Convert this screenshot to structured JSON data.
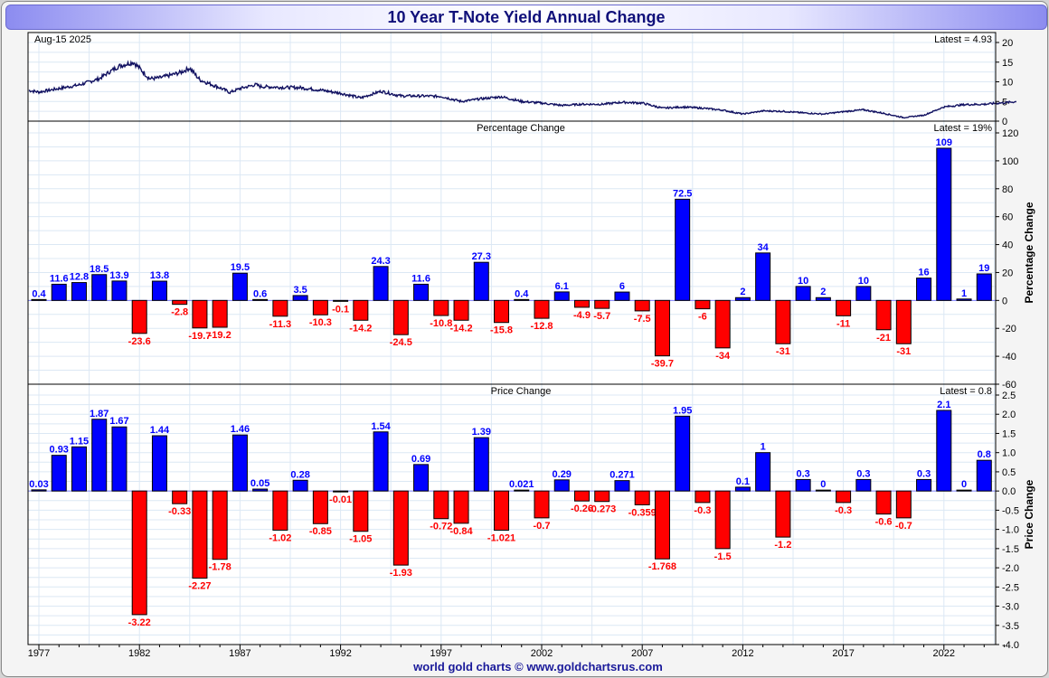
{
  "title": "10 Year T-Note Yield Annual Change",
  "footer": "world gold charts © www.goldchartsrus.com",
  "colors": {
    "up": "#0000ff",
    "down": "#ff0000",
    "line": "#101060",
    "grid": "#dce8f4",
    "title": "#10107a"
  },
  "chart_data": [
    {
      "type": "line",
      "title": "Aug-15  2025",
      "annotation": "Latest = 4.93",
      "ylabel": "",
      "ylim": [
        0,
        20
      ],
      "yticks": [
        0,
        5,
        10,
        15,
        20
      ],
      "x": [
        1976.5,
        1977,
        1978,
        1979,
        1980,
        1980.5,
        1981,
        1981.7,
        1982,
        1982.5,
        1983,
        1984,
        1984.5,
        1985,
        1986,
        1986.5,
        1987,
        1987.8,
        1988,
        1989,
        1990,
        1991,
        1992,
        1993,
        1994,
        1995,
        1996,
        1997,
        1998,
        1999,
        2000,
        2001,
        2002,
        2003,
        2004,
        2005,
        2006,
        2007,
        2008,
        2009,
        2010,
        2011,
        2012,
        2013,
        2014,
        2015,
        2016,
        2017,
        2018,
        2019,
        2020,
        2021,
        2022,
        2023,
        2024,
        2025.6
      ],
      "y": [
        7.8,
        7.4,
        8.3,
        9.2,
        10.8,
        12.5,
        14,
        15,
        13.5,
        10.8,
        11,
        12.3,
        13.5,
        10.5,
        8.5,
        7.3,
        8.3,
        9.3,
        8.8,
        8.6,
        8.5,
        7.9,
        7.1,
        5.9,
        7.6,
        6.4,
        6.4,
        6.3,
        5.0,
        5.7,
        6.2,
        5.0,
        4.6,
        4.0,
        4.3,
        4.3,
        4.8,
        4.6,
        3.3,
        3.6,
        3.3,
        2.8,
        1.8,
        2.6,
        2.5,
        2.1,
        1.8,
        2.4,
        2.9,
        2.0,
        0.9,
        1.5,
        3.6,
        4.2,
        4.3,
        4.93
      ]
    },
    {
      "type": "bar",
      "title": "Percentage Change",
      "annotation": "Latest = 19%",
      "ylabel": "Percentage Change",
      "ylim": [
        -60,
        120
      ],
      "yticks": [
        -60,
        -40,
        -20,
        0,
        20,
        40,
        60,
        80,
        100,
        120
      ],
      "categories": [
        1977,
        1978,
        1979,
        1980,
        1981,
        1982,
        1983,
        1984,
        1985,
        1986,
        1987,
        1988,
        1989,
        1990,
        1991,
        1992,
        1993,
        1994,
        1995,
        1996,
        1997,
        1998,
        1999,
        2000,
        2001,
        2002,
        2003,
        2004,
        2005,
        2006,
        2007,
        2008,
        2009,
        2010,
        2011,
        2012,
        2013,
        2014,
        2015,
        2016,
        2017,
        2018,
        2019,
        2020,
        2021,
        2022,
        2023,
        2024
      ],
      "values": [
        0.4,
        11.6,
        12.8,
        18.5,
        13.9,
        -23.6,
        13.8,
        -2.8,
        -19.7,
        -19.2,
        19.5,
        0.6,
        -11.3,
        3.5,
        -10.3,
        -0.1,
        -14.2,
        24.3,
        -24.5,
        11.6,
        -10.8,
        -14.2,
        27.3,
        -15.8,
        0.4,
        -12.8,
        6.1,
        -4.9,
        -5.7,
        6,
        -7.5,
        -39.7,
        72.5,
        -6,
        -34,
        2,
        34,
        -31,
        10,
        2,
        -11,
        10,
        -21,
        -31,
        16,
        109,
        1,
        19
      ]
    },
    {
      "type": "bar",
      "title": "Price Change",
      "annotation": "Latest = 0.8",
      "ylabel": "Price Change",
      "ylim": [
        -4,
        2.5
      ],
      "yticks": [
        -4.0,
        -3.5,
        -3.0,
        -2.5,
        -2.0,
        -1.5,
        -1.0,
        -0.5,
        0.0,
        0.5,
        1.0,
        1.5,
        2.0,
        2.5
      ],
      "categories": [
        1977,
        1978,
        1979,
        1980,
        1981,
        1982,
        1983,
        1984,
        1985,
        1986,
        1987,
        1988,
        1989,
        1990,
        1991,
        1992,
        1993,
        1994,
        1995,
        1996,
        1997,
        1998,
        1999,
        2000,
        2001,
        2002,
        2003,
        2004,
        2005,
        2006,
        2007,
        2008,
        2009,
        2010,
        2011,
        2012,
        2013,
        2014,
        2015,
        2016,
        2017,
        2018,
        2019,
        2020,
        2021,
        2022,
        2023,
        2024
      ],
      "values": [
        0.03,
        0.93,
        1.15,
        1.87,
        1.67,
        -3.22,
        1.44,
        -0.33,
        -2.27,
        -1.78,
        1.46,
        0.05,
        -1.02,
        0.28,
        -0.85,
        -0.01,
        -1.05,
        1.54,
        -1.93,
        0.69,
        -0.72,
        -0.84,
        1.39,
        -1.021,
        0.021,
        -0.7,
        0.29,
        -0.26,
        -0.273,
        0.271,
        -0.359,
        -1.768,
        1.95,
        -0.3,
        -1.5,
        0.1,
        1,
        -1.2,
        0.3,
        0,
        -0.3,
        0.3,
        -0.6,
        -0.7,
        0.3,
        2.1,
        0,
        0.8
      ]
    }
  ],
  "xaxis": {
    "ticks": [
      1977,
      1982,
      1987,
      1992,
      1997,
      2002,
      2007,
      2012,
      2017,
      2022
    ]
  }
}
